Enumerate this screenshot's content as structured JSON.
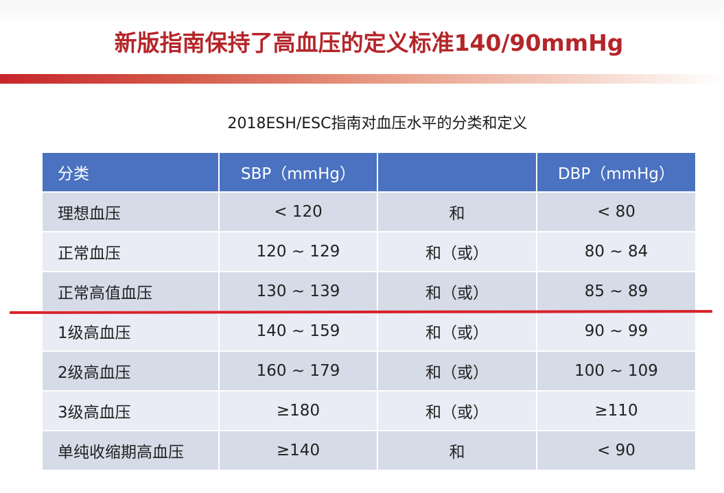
{
  "title": "新版指南保持了高血压的定义标准140/90mmHg",
  "caption": "2018ESH/ESC指南对血压水平的分类和定义",
  "colors": {
    "title_red": "#b4262a",
    "header_blue": "#4a72c0",
    "row_dark": "#d6dbe8",
    "row_light": "#e9ecf4",
    "threshold_line": "#d8202a"
  },
  "table": {
    "headers": [
      "分类",
      "SBP（mmHg）",
      "",
      "DBP（mmHg）"
    ],
    "rows": [
      [
        "理想血压",
        "< 120",
        "和",
        "< 80"
      ],
      [
        "正常血压",
        "120 ~ 129",
        "和（或）",
        "80 ~ 84"
      ],
      [
        "正常高值血压",
        "130 ~ 139",
        "和（或）",
        "85 ~ 89"
      ],
      [
        "1级高血压",
        "140 ~ 159",
        "和（或）",
        "90 ~ 99"
      ],
      [
        "2级高血压",
        "160 ~ 179",
        "和（或）",
        "100 ~ 109"
      ],
      [
        "3级高血压",
        "≥180",
        "和（或）",
        "≥110"
      ],
      [
        "单纯收缩期高血压",
        "≥140",
        "和",
        "< 90"
      ]
    ]
  }
}
